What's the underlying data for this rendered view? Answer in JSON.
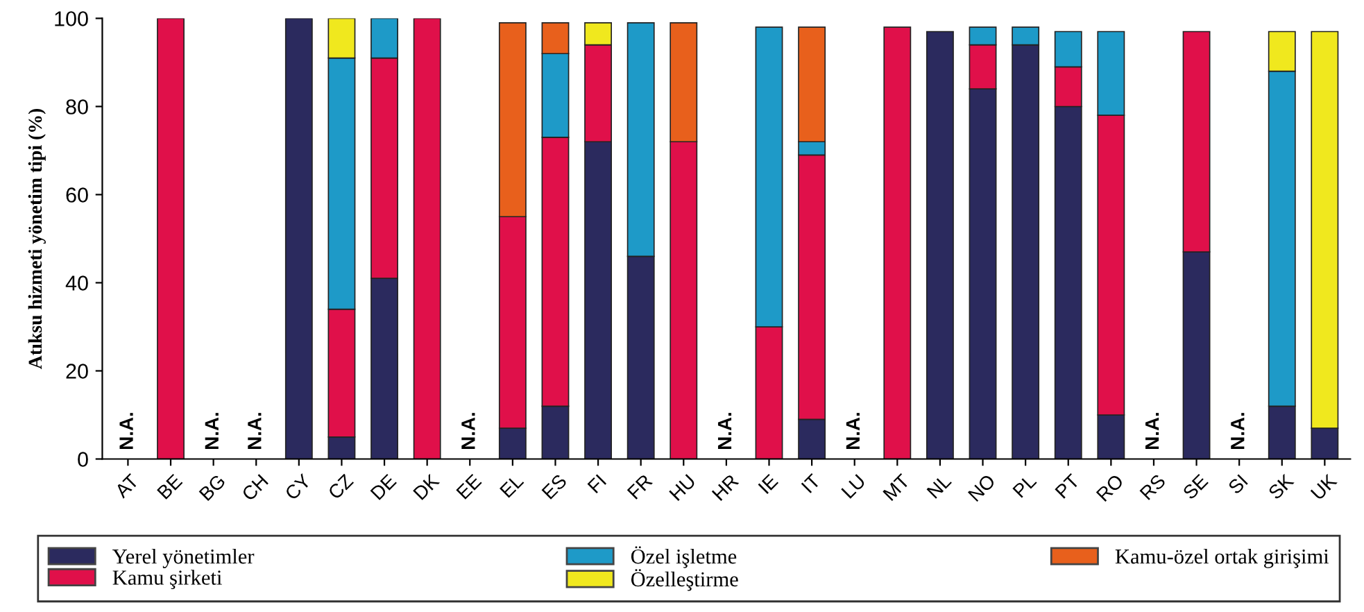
{
  "chart_data": {
    "type": "bar",
    "stacked": true,
    "ylabel": "Atıksu hizmeti yönetim tipi (%)",
    "categories": [
      "AT",
      "BE",
      "BG",
      "CH",
      "CY",
      "CZ",
      "DE",
      "DK",
      "EE",
      "EL",
      "ES",
      "FI",
      "FR",
      "HU",
      "HR",
      "IE",
      "IT",
      "LU",
      "MT",
      "NL",
      "NO",
      "PL",
      "PT",
      "RO",
      "RS",
      "SE",
      "SI",
      "SK",
      "UK"
    ],
    "series": [
      {
        "name": "Yerel yönetimler",
        "color": "#2b2a5e",
        "values": [
          null,
          null,
          null,
          null,
          100,
          5,
          41,
          null,
          null,
          7,
          12,
          72,
          46,
          null,
          null,
          null,
          9,
          null,
          null,
          97,
          84,
          94,
          80,
          10,
          null,
          47,
          null,
          12,
          7
        ]
      },
      {
        "name": "Kamu şirketi",
        "color": "#e0104a",
        "values": [
          null,
          100,
          null,
          null,
          null,
          29,
          50,
          100,
          null,
          48,
          61,
          22,
          null,
          72,
          null,
          30,
          60,
          null,
          98,
          null,
          10,
          null,
          9,
          68,
          null,
          50,
          null,
          null,
          null
        ]
      },
      {
        "name": "Özel işletme",
        "color": "#1e9ac8",
        "values": [
          null,
          null,
          null,
          null,
          null,
          57,
          9,
          null,
          null,
          null,
          19,
          null,
          53,
          null,
          null,
          68,
          3,
          null,
          null,
          null,
          4,
          4,
          8,
          19,
          null,
          null,
          null,
          76,
          null
        ]
      },
      {
        "name": "Özelleştirme",
        "color": "#f0e81e",
        "values": [
          null,
          null,
          null,
          null,
          null,
          9,
          null,
          null,
          null,
          null,
          null,
          5,
          null,
          null,
          null,
          null,
          null,
          null,
          null,
          null,
          null,
          null,
          null,
          null,
          null,
          null,
          null,
          9,
          90
        ]
      },
      {
        "name": "Kamu-özel ortak girişimi",
        "color": "#e8601c",
        "values": [
          null,
          null,
          null,
          null,
          null,
          null,
          null,
          null,
          null,
          44,
          7,
          null,
          null,
          27,
          null,
          null,
          26,
          null,
          null,
          null,
          null,
          null,
          null,
          null,
          null,
          null,
          null,
          null,
          null
        ]
      }
    ],
    "annotations": [
      "N.A.",
      "N.A.",
      "N.A.",
      "N.A.",
      "N.A.",
      "N.A.",
      "N.A.",
      "N.A."
    ],
    "ylim": [
      0,
      100
    ],
    "yticks": [
      0,
      20,
      40,
      60,
      80,
      100
    ],
    "grid": false,
    "legend": "bottom"
  }
}
